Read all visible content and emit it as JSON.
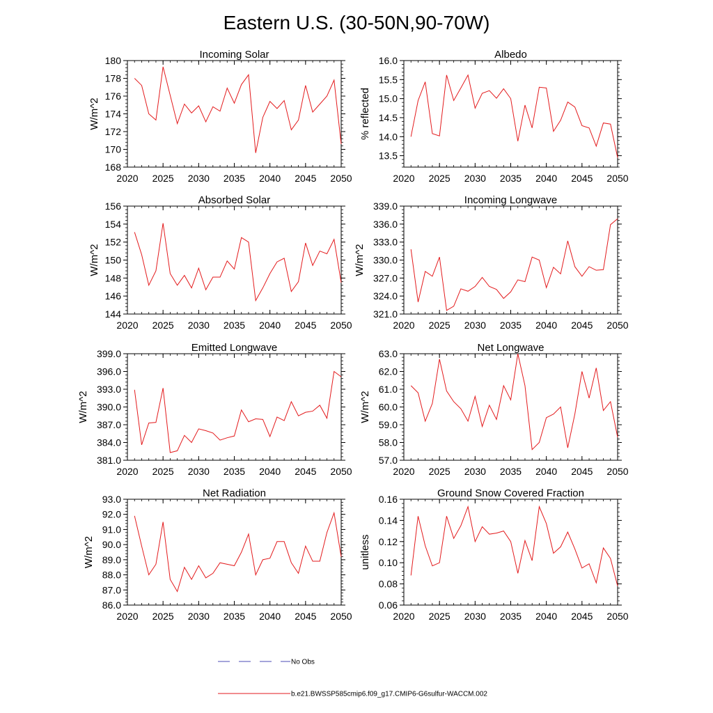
{
  "page": {
    "title": "Eastern U.S. (30-50N,90-70W)"
  },
  "legend": [
    {
      "label": "No Obs",
      "color": "#4b4bb4",
      "style": "dashed"
    },
    {
      "label": "b.e21.BWSSP585cmip6.f09_g17.CMIP6-G6sulfur-WACCM.002",
      "color": "#e31a1c",
      "style": "solid"
    }
  ],
  "chart_data": [
    {
      "type": "line",
      "title": "Incoming Solar",
      "ylabel": "W/m^2",
      "xlim": [
        2020,
        2050
      ],
      "ylim": [
        168,
        180
      ],
      "xticks": [
        2020,
        2025,
        2030,
        2035,
        2040,
        2045,
        2050
      ],
      "xtick_labels": [
        "2020",
        "2025",
        "2030",
        "2035",
        "2040",
        "2045",
        "2050"
      ],
      "yticks": [
        168,
        170,
        172,
        174,
        176,
        178,
        180
      ],
      "ytick_labels": [
        "168",
        "170",
        "172",
        "174",
        "176",
        "178",
        "180"
      ],
      "x": [
        2021,
        2022,
        2023,
        2024,
        2025,
        2026,
        2027,
        2028,
        2029,
        2030,
        2031,
        2032,
        2033,
        2034,
        2035,
        2036,
        2037,
        2038,
        2039,
        2040,
        2041,
        2042,
        2043,
        2044,
        2045,
        2046,
        2047,
        2048,
        2049,
        2050
      ],
      "series": [
        {
          "color": "#e31a1c",
          "values": [
            178.0,
            177.2,
            174.0,
            173.3,
            179.3,
            176.1,
            172.9,
            175.1,
            174.1,
            174.9,
            173.1,
            174.8,
            174.3,
            176.9,
            175.2,
            177.3,
            178.4,
            169.6,
            173.6,
            175.4,
            174.6,
            175.5,
            172.2,
            173.3,
            177.2,
            174.2,
            175.1,
            176.0,
            177.8,
            170.6
          ]
        }
      ]
    },
    {
      "type": "line",
      "title": "Albedo",
      "ylabel": "% reflected",
      "xlim": [
        2020,
        2050
      ],
      "ylim": [
        13.2,
        16.0
      ],
      "xticks": [
        2020,
        2025,
        2030,
        2035,
        2040,
        2045,
        2050
      ],
      "xtick_labels": [
        "2020",
        "2025",
        "2030",
        "2035",
        "2040",
        "2045",
        "2050"
      ],
      "yticks": [
        13.5,
        14.0,
        14.5,
        15.0,
        15.5,
        16.0
      ],
      "ytick_labels": [
        "13.5",
        "14.0",
        "14.5",
        "15.0",
        "15.5",
        "16.0"
      ],
      "x": [
        2021,
        2022,
        2023,
        2024,
        2025,
        2026,
        2027,
        2028,
        2029,
        2030,
        2031,
        2032,
        2033,
        2034,
        2035,
        2036,
        2037,
        2038,
        2039,
        2040,
        2041,
        2042,
        2043,
        2044,
        2045,
        2046,
        2047,
        2048,
        2049,
        2050
      ],
      "series": [
        {
          "color": "#e31a1c",
          "values": [
            14.0,
            14.95,
            15.44,
            14.08,
            14.02,
            15.62,
            14.95,
            15.28,
            15.62,
            14.75,
            15.14,
            15.21,
            15.01,
            15.26,
            15.0,
            13.88,
            14.83,
            14.23,
            15.3,
            15.28,
            14.14,
            14.43,
            14.91,
            14.78,
            14.29,
            14.23,
            13.75,
            14.36,
            14.33,
            13.45
          ]
        }
      ]
    },
    {
      "type": "line",
      "title": "Absorbed Solar",
      "ylabel": "W/m^2",
      "xlim": [
        2020,
        2050
      ],
      "ylim": [
        144,
        156
      ],
      "xticks": [
        2020,
        2025,
        2030,
        2035,
        2040,
        2045,
        2050
      ],
      "xtick_labels": [
        "2020",
        "2025",
        "2030",
        "2035",
        "2040",
        "2045",
        "2050"
      ],
      "yticks": [
        144,
        146,
        148,
        150,
        152,
        154,
        156
      ],
      "ytick_labels": [
        "144",
        "146",
        "148",
        "150",
        "152",
        "154",
        "156"
      ],
      "x": [
        2021,
        2022,
        2023,
        2024,
        2025,
        2026,
        2027,
        2028,
        2029,
        2030,
        2031,
        2032,
        2033,
        2034,
        2035,
        2036,
        2037,
        2038,
        2039,
        2040,
        2041,
        2042,
        2043,
        2044,
        2045,
        2046,
        2047,
        2048,
        2049,
        2050
      ],
      "series": [
        {
          "color": "#e31a1c",
          "values": [
            153.1,
            150.6,
            147.2,
            148.8,
            154.1,
            148.5,
            147.2,
            148.3,
            146.9,
            149.1,
            146.7,
            148.1,
            148.1,
            149.9,
            149.0,
            152.5,
            152.0,
            145.5,
            146.9,
            148.5,
            149.8,
            150.2,
            146.5,
            147.6,
            151.9,
            149.4,
            151.0,
            150.7,
            152.3,
            147.5
          ]
        }
      ]
    },
    {
      "type": "line",
      "title": "Incoming Longwave",
      "ylabel": "W/m^2",
      "xlim": [
        2020,
        2050
      ],
      "ylim": [
        321.0,
        339.0
      ],
      "xticks": [
        2020,
        2025,
        2030,
        2035,
        2040,
        2045,
        2050
      ],
      "xtick_labels": [
        "2020",
        "2025",
        "2030",
        "2035",
        "2040",
        "2045",
        "2050"
      ],
      "yticks": [
        321.0,
        324.0,
        327.0,
        330.0,
        333.0,
        336.0,
        339.0
      ],
      "ytick_labels": [
        "321.0",
        "324.0",
        "327.0",
        "330.0",
        "333.0",
        "336.0",
        "339.0"
      ],
      "x": [
        2021,
        2022,
        2023,
        2024,
        2025,
        2026,
        2027,
        2028,
        2029,
        2030,
        2031,
        2032,
        2033,
        2034,
        2035,
        2036,
        2037,
        2038,
        2039,
        2040,
        2041,
        2042,
        2043,
        2044,
        2045,
        2046,
        2047,
        2048,
        2049,
        2050
      ],
      "series": [
        {
          "color": "#e31a1c",
          "values": [
            331.8,
            323.0,
            328.1,
            327.3,
            330.5,
            321.6,
            322.3,
            325.2,
            324.8,
            325.6,
            327.1,
            325.6,
            325.1,
            323.6,
            324.7,
            326.7,
            326.4,
            330.5,
            330.0,
            325.4,
            328.8,
            327.7,
            333.2,
            328.9,
            327.3,
            328.9,
            328.3,
            328.4,
            335.9,
            336.9
          ]
        }
      ]
    },
    {
      "type": "line",
      "title": "Emitted Longwave",
      "ylabel": "W/m^2",
      "xlim": [
        2020,
        2050
      ],
      "ylim": [
        381.0,
        399.0
      ],
      "xticks": [
        2020,
        2025,
        2030,
        2035,
        2040,
        2045,
        2050
      ],
      "xtick_labels": [
        "2020",
        "2025",
        "2030",
        "2035",
        "2040",
        "2045",
        "2050"
      ],
      "yticks": [
        381.0,
        384.0,
        387.0,
        390.0,
        393.0,
        396.0,
        399.0
      ],
      "ytick_labels": [
        "381.0",
        "384.0",
        "387.0",
        "390.0",
        "393.0",
        "396.0",
        "399.0"
      ],
      "x": [
        2021,
        2022,
        2023,
        2024,
        2025,
        2026,
        2027,
        2028,
        2029,
        2030,
        2031,
        2032,
        2033,
        2034,
        2035,
        2036,
        2037,
        2038,
        2039,
        2040,
        2041,
        2042,
        2043,
        2044,
        2045,
        2046,
        2047,
        2048,
        2049,
        2050
      ],
      "series": [
        {
          "color": "#e31a1c",
          "values": [
            392.9,
            383.6,
            387.3,
            387.4,
            393.2,
            382.3,
            382.6,
            385.2,
            384.0,
            386.3,
            386.0,
            385.6,
            384.4,
            384.8,
            385.1,
            389.5,
            387.5,
            388.0,
            387.9,
            385.0,
            388.3,
            387.7,
            390.9,
            388.5,
            389.1,
            389.3,
            390.3,
            388.1,
            396.0,
            395.1
          ]
        }
      ]
    },
    {
      "type": "line",
      "title": "Net Longwave",
      "ylabel": "W/m^2",
      "xlim": [
        2020,
        2050
      ],
      "ylim": [
        57.0,
        63.0
      ],
      "xticks": [
        2020,
        2025,
        2030,
        2035,
        2040,
        2045,
        2050
      ],
      "xtick_labels": [
        "2020",
        "2025",
        "2030",
        "2035",
        "2040",
        "2045",
        "2050"
      ],
      "yticks": [
        57.0,
        58.0,
        59.0,
        60.0,
        61.0,
        62.0,
        63.0
      ],
      "ytick_labels": [
        "57.0",
        "58.0",
        "59.0",
        "60.0",
        "61.0",
        "62.0",
        "63.0"
      ],
      "x": [
        2021,
        2022,
        2023,
        2024,
        2025,
        2026,
        2027,
        2028,
        2029,
        2030,
        2031,
        2032,
        2033,
        2034,
        2035,
        2036,
        2037,
        2038,
        2039,
        2040,
        2041,
        2042,
        2043,
        2044,
        2045,
        2046,
        2047,
        2048,
        2049,
        2050
      ],
      "series": [
        {
          "color": "#e31a1c",
          "values": [
            61.2,
            60.8,
            59.2,
            60.2,
            62.7,
            60.9,
            60.3,
            59.9,
            59.2,
            60.6,
            58.9,
            60.1,
            59.3,
            61.2,
            60.4,
            63.0,
            61.2,
            57.6,
            58.0,
            59.4,
            59.6,
            60.0,
            57.7,
            59.6,
            62.0,
            60.5,
            62.2,
            59.8,
            60.3,
            58.3
          ]
        }
      ]
    },
    {
      "type": "line",
      "title": "Net Radiation",
      "ylabel": "W/m^2",
      "xlim": [
        2020,
        2050
      ],
      "ylim": [
        86.0,
        93.0
      ],
      "xticks": [
        2020,
        2025,
        2030,
        2035,
        2040,
        2045,
        2050
      ],
      "xtick_labels": [
        "2020",
        "2025",
        "2030",
        "2035",
        "2040",
        "2045",
        "2050"
      ],
      "yticks": [
        86.0,
        87.0,
        88.0,
        89.0,
        90.0,
        91.0,
        92.0,
        93.0
      ],
      "ytick_labels": [
        "86.0",
        "87.0",
        "88.0",
        "89.0",
        "90.0",
        "91.0",
        "92.0",
        "93.0"
      ],
      "x": [
        2021,
        2022,
        2023,
        2024,
        2025,
        2026,
        2027,
        2028,
        2029,
        2030,
        2031,
        2032,
        2033,
        2034,
        2035,
        2036,
        2037,
        2038,
        2039,
        2040,
        2041,
        2042,
        2043,
        2044,
        2045,
        2046,
        2047,
        2048,
        2049,
        2050
      ],
      "series": [
        {
          "color": "#e31a1c",
          "values": [
            91.9,
            89.9,
            88.0,
            88.7,
            91.5,
            87.7,
            86.9,
            88.5,
            87.7,
            88.6,
            87.8,
            88.1,
            88.8,
            88.7,
            88.6,
            89.5,
            90.7,
            88.0,
            89.0,
            89.1,
            90.2,
            90.2,
            88.8,
            88.1,
            89.9,
            88.9,
            88.9,
            90.8,
            92.1,
            89.2
          ]
        }
      ]
    },
    {
      "type": "line",
      "title": "Ground Snow Covered Fraction",
      "ylabel": "unitless",
      "xlim": [
        2020,
        2050
      ],
      "ylim": [
        0.06,
        0.16
      ],
      "xticks": [
        2020,
        2025,
        2030,
        2035,
        2040,
        2045,
        2050
      ],
      "xtick_labels": [
        "2020",
        "2025",
        "2030",
        "2035",
        "2040",
        "2045",
        "2050"
      ],
      "yticks": [
        0.06,
        0.08,
        0.1,
        0.12,
        0.14,
        0.16
      ],
      "ytick_labels": [
        "0.06",
        "0.08",
        "0.10",
        "0.12",
        "0.14",
        "0.16"
      ],
      "x": [
        2021,
        2022,
        2023,
        2024,
        2025,
        2026,
        2027,
        2028,
        2029,
        2030,
        2031,
        2032,
        2033,
        2034,
        2035,
        2036,
        2037,
        2038,
        2039,
        2040,
        2041,
        2042,
        2043,
        2044,
        2045,
        2046,
        2047,
        2048,
        2049,
        2050
      ],
      "series": [
        {
          "color": "#e31a1c",
          "values": [
            0.088,
            0.144,
            0.116,
            0.097,
            0.1,
            0.144,
            0.123,
            0.135,
            0.153,
            0.12,
            0.134,
            0.127,
            0.128,
            0.13,
            0.12,
            0.09,
            0.121,
            0.102,
            0.153,
            0.137,
            0.109,
            0.115,
            0.129,
            0.113,
            0.095,
            0.099,
            0.081,
            0.114,
            0.104,
            0.078
          ]
        }
      ]
    }
  ]
}
